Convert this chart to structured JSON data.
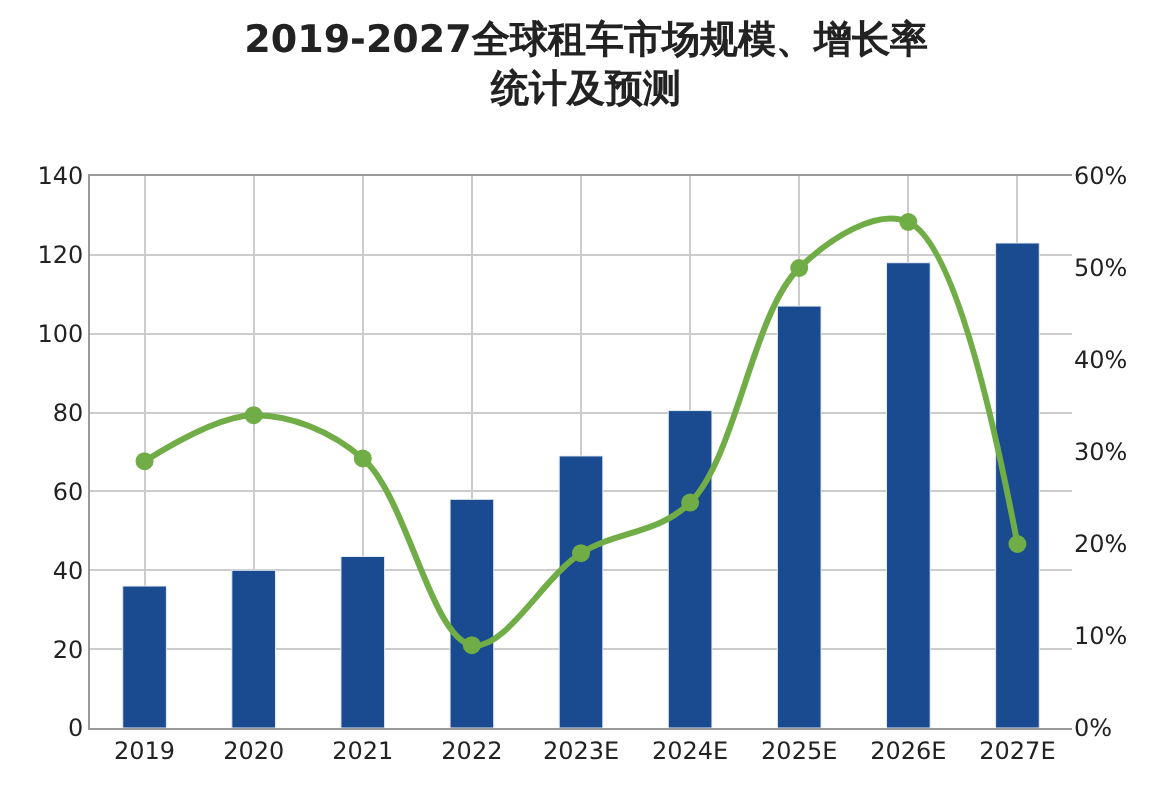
{
  "chart_data": {
    "type": "bar",
    "title": "2019-2027全球租车市场规模、增长率",
    "subtitle": "统计及预测",
    "categories": [
      "2019",
      "2020",
      "2021",
      "2022",
      "2023E",
      "2024E",
      "2025E",
      "2026E",
      "2027E"
    ],
    "series": [
      {
        "color": "#1a4a8f",
        "values": [
          36,
          40,
          43.5,
          58,
          69,
          80.5,
          107,
          118,
          123
        ]
      },
      {
        "type": "line",
        "axis": "y2",
        "color": "#70ad47",
        "marker": "circle",
        "line_style": "solid",
        "values": [
          29,
          34,
          29.3,
          9,
          19,
          24.5,
          50,
          55,
          20
        ]
      }
    ],
    "ylim": [
      0,
      140
    ],
    "yticks": [
      0,
      20,
      40,
      60,
      80,
      100,
      120,
      140
    ],
    "y2lim": [
      0,
      60
    ],
    "y2ticks": [
      {
        "value": 0,
        "label": "0%"
      },
      {
        "value": 10,
        "label": "10%"
      },
      {
        "value": 20,
        "label": "20%"
      },
      {
        "value": 30,
        "label": "30%"
      },
      {
        "value": 40,
        "label": "40%"
      },
      {
        "value": 50,
        "label": "50%"
      },
      {
        "value": 60,
        "label": "60%"
      }
    ],
    "grid": true
  }
}
